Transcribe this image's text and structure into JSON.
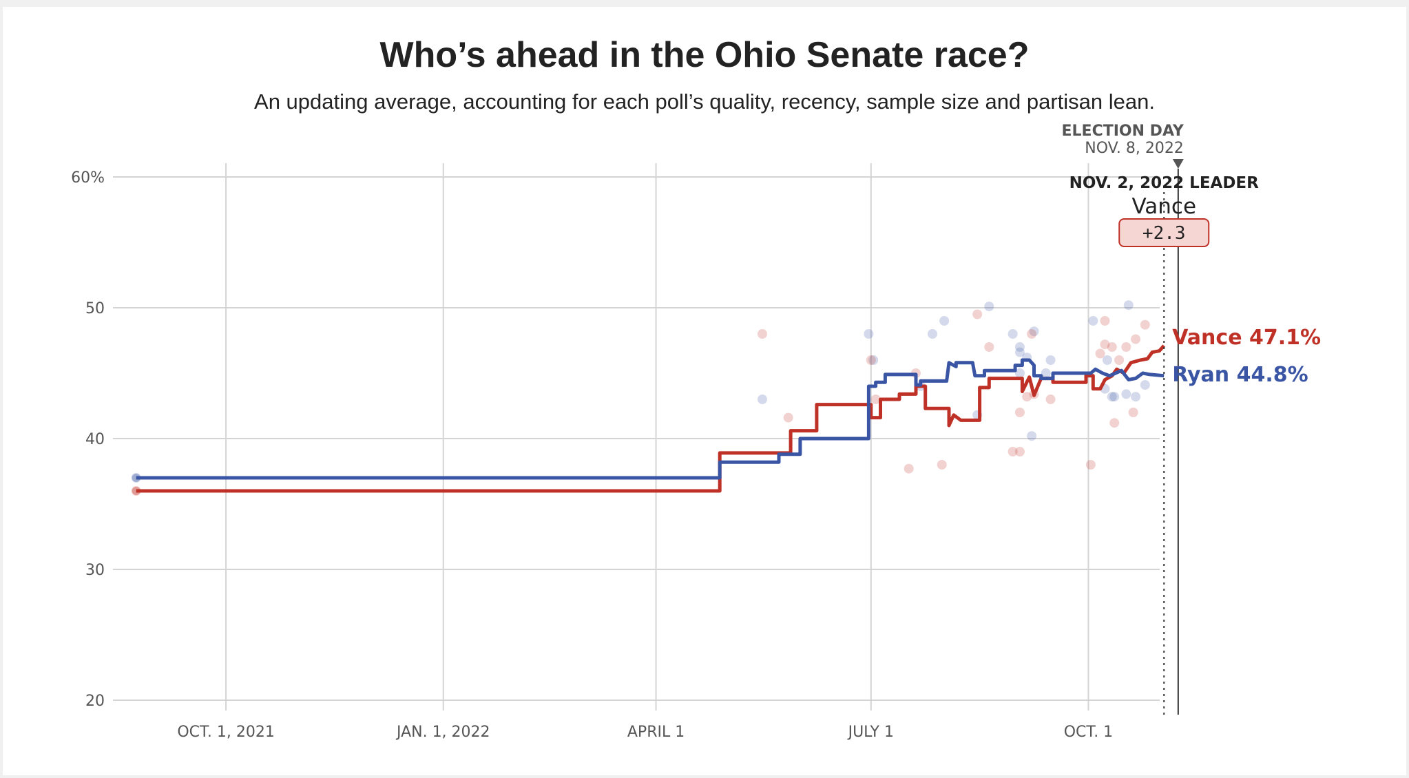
{
  "chart_data": {
    "type": "line",
    "title": "Who’s ahead in the Ohio Senate race?",
    "subtitle": "An updating average, accounting for each poll’s quality, recency, sample size and partisan lean.",
    "ylim": [
      20,
      60
    ],
    "yticks": [
      {
        "value": 60,
        "label": "60%"
      },
      {
        "value": 50,
        "label": "50"
      },
      {
        "value": 40,
        "label": "40"
      },
      {
        "value": 30,
        "label": "30"
      },
      {
        "value": 20,
        "label": "20"
      }
    ],
    "xlim": [
      "2021-08-20",
      "2022-11-20"
    ],
    "xticks": [
      {
        "date": "2021-10-01",
        "label": "OCT. 1, 2021"
      },
      {
        "date": "2022-01-01",
        "label": "JAN. 1, 2022"
      },
      {
        "date": "2022-04-01",
        "label": "APRIL 1"
      },
      {
        "date": "2022-07-01",
        "label": "JULY 1"
      },
      {
        "date": "2022-10-01",
        "label": "OCT. 1"
      }
    ],
    "grid": true,
    "series": [
      {
        "name": "Ryan",
        "color": "#3a55a4",
        "end_label": "Ryan 44.8%",
        "points": [
          [
            "2021-08-24",
            37.0
          ],
          [
            "2022-04-28",
            37.0
          ],
          [
            "2022-04-28",
            38.2
          ],
          [
            "2022-05-23",
            38.2
          ],
          [
            "2022-05-23",
            38.8
          ],
          [
            "2022-06-01",
            38.8
          ],
          [
            "2022-06-01",
            40.0
          ],
          [
            "2022-06-30",
            40.0
          ],
          [
            "2022-06-30",
            44.0
          ],
          [
            "2022-07-03",
            44.0
          ],
          [
            "2022-07-03",
            44.3
          ],
          [
            "2022-07-07",
            44.3
          ],
          [
            "2022-07-07",
            44.9
          ],
          [
            "2022-07-20",
            44.9
          ],
          [
            "2022-07-20",
            44.1
          ],
          [
            "2022-07-22",
            44.1
          ],
          [
            "2022-07-22",
            44.4
          ],
          [
            "2022-08-02",
            44.4
          ],
          [
            "2022-08-03",
            45.8
          ],
          [
            "2022-08-06",
            45.5
          ],
          [
            "2022-08-06",
            45.8
          ],
          [
            "2022-08-13",
            45.8
          ],
          [
            "2022-08-14",
            44.8
          ],
          [
            "2022-08-18",
            44.8
          ],
          [
            "2022-08-18",
            45.2
          ],
          [
            "2022-08-31",
            45.2
          ],
          [
            "2022-08-31",
            45.6
          ],
          [
            "2022-09-03",
            45.6
          ],
          [
            "2022-09-03",
            46.0
          ],
          [
            "2022-09-06",
            46.0
          ],
          [
            "2022-09-08",
            45.6
          ],
          [
            "2022-09-08",
            44.8
          ],
          [
            "2022-09-11",
            44.8
          ],
          [
            "2022-09-11",
            44.6
          ],
          [
            "2022-09-16",
            44.6
          ],
          [
            "2022-09-16",
            45.0
          ],
          [
            "2022-10-02",
            45.0
          ],
          [
            "2022-10-04",
            45.3
          ],
          [
            "2022-10-07",
            45.0
          ],
          [
            "2022-10-10",
            44.8
          ],
          [
            "2022-10-15",
            45.2
          ],
          [
            "2022-10-18",
            44.5
          ],
          [
            "2022-10-21",
            44.6
          ],
          [
            "2022-10-24",
            45.0
          ],
          [
            "2022-10-27",
            44.9
          ],
          [
            "2022-11-02",
            44.8
          ]
        ],
        "polls": [
          [
            "2021-08-24",
            37.0
          ],
          [
            "2022-05-16",
            43.0
          ],
          [
            "2022-06-30",
            48.0
          ],
          [
            "2022-07-02",
            46.0
          ],
          [
            "2022-07-22",
            44.0
          ],
          [
            "2022-07-27",
            48.0
          ],
          [
            "2022-08-01",
            49.0
          ],
          [
            "2022-08-15",
            41.8
          ],
          [
            "2022-08-20",
            50.1
          ],
          [
            "2022-08-30",
            48.0
          ],
          [
            "2022-09-02",
            47.0
          ],
          [
            "2022-09-02",
            45.0
          ],
          [
            "2022-09-02",
            46.6
          ],
          [
            "2022-09-05",
            46.2
          ],
          [
            "2022-09-07",
            40.2
          ],
          [
            "2022-09-08",
            48.2
          ],
          [
            "2022-09-13",
            45.0
          ],
          [
            "2022-09-15",
            46.0
          ],
          [
            "2022-10-03",
            49.0
          ],
          [
            "2022-10-08",
            43.8
          ],
          [
            "2022-10-09",
            46.0
          ],
          [
            "2022-10-11",
            43.2
          ],
          [
            "2022-10-12",
            43.2
          ],
          [
            "2022-10-17",
            43.4
          ],
          [
            "2022-10-18",
            50.2
          ],
          [
            "2022-10-21",
            43.2
          ],
          [
            "2022-10-25",
            44.1
          ]
        ]
      },
      {
        "name": "Vance",
        "color": "#bf3127",
        "end_label": "Vance 47.1%",
        "points": [
          [
            "2021-08-24",
            36.0
          ],
          [
            "2022-04-28",
            36.0
          ],
          [
            "2022-04-28",
            38.9
          ],
          [
            "2022-05-28",
            38.9
          ],
          [
            "2022-05-28",
            40.6
          ],
          [
            "2022-06-08",
            40.6
          ],
          [
            "2022-06-08",
            42.6
          ],
          [
            "2022-07-01",
            42.6
          ],
          [
            "2022-07-01",
            41.6
          ],
          [
            "2022-07-05",
            41.6
          ],
          [
            "2022-07-05",
            43.0
          ],
          [
            "2022-07-13",
            43.0
          ],
          [
            "2022-07-13",
            43.4
          ],
          [
            "2022-07-20",
            43.4
          ],
          [
            "2022-07-20",
            44.0
          ],
          [
            "2022-07-24",
            44.0
          ],
          [
            "2022-07-24",
            42.3
          ],
          [
            "2022-08-03",
            42.3
          ],
          [
            "2022-08-03",
            41.0
          ],
          [
            "2022-08-05",
            41.8
          ],
          [
            "2022-08-08",
            41.4
          ],
          [
            "2022-08-16",
            41.4
          ],
          [
            "2022-08-16",
            43.9
          ],
          [
            "2022-08-20",
            43.9
          ],
          [
            "2022-08-20",
            44.6
          ],
          [
            "2022-09-03",
            44.6
          ],
          [
            "2022-09-03",
            43.6
          ],
          [
            "2022-09-06",
            44.7
          ],
          [
            "2022-09-08",
            43.3
          ],
          [
            "2022-09-11",
            44.6
          ],
          [
            "2022-09-16",
            44.6
          ],
          [
            "2022-09-16",
            44.3
          ],
          [
            "2022-09-30",
            44.3
          ],
          [
            "2022-09-30",
            44.8
          ],
          [
            "2022-10-03",
            44.8
          ],
          [
            "2022-10-03",
            43.8
          ],
          [
            "2022-10-06",
            43.8
          ],
          [
            "2022-10-08",
            44.5
          ],
          [
            "2022-10-11",
            44.8
          ],
          [
            "2022-10-13",
            45.3
          ],
          [
            "2022-10-16",
            45.0
          ],
          [
            "2022-10-19",
            45.8
          ],
          [
            "2022-10-23",
            46.0
          ],
          [
            "2022-10-26",
            46.1
          ],
          [
            "2022-10-28",
            46.6
          ],
          [
            "2022-10-31",
            46.7
          ],
          [
            "2022-11-02",
            47.1
          ]
        ],
        "polls": [
          [
            "2021-08-24",
            36.0
          ],
          [
            "2022-05-16",
            48.0
          ],
          [
            "2022-05-27",
            41.6
          ],
          [
            "2022-07-01",
            46.0
          ],
          [
            "2022-07-03",
            43.0
          ],
          [
            "2022-07-17",
            37.7
          ],
          [
            "2022-07-20",
            45.0
          ],
          [
            "2022-07-31",
            38.0
          ],
          [
            "2022-08-15",
            49.5
          ],
          [
            "2022-08-20",
            47.0
          ],
          [
            "2022-08-30",
            39.0
          ],
          [
            "2022-09-02",
            39.0
          ],
          [
            "2022-09-02",
            42.0
          ],
          [
            "2022-09-05",
            43.2
          ],
          [
            "2022-09-07",
            48.0
          ],
          [
            "2022-09-08",
            43.4
          ],
          [
            "2022-09-15",
            43.0
          ],
          [
            "2022-10-02",
            38.0
          ],
          [
            "2022-10-06",
            46.5
          ],
          [
            "2022-10-08",
            49.0
          ],
          [
            "2022-10-08",
            47.2
          ],
          [
            "2022-10-11",
            47.0
          ],
          [
            "2022-10-12",
            41.2
          ],
          [
            "2022-10-14",
            46.0
          ],
          [
            "2022-10-17",
            47.0
          ],
          [
            "2022-10-20",
            42.0
          ],
          [
            "2022-10-21",
            47.6
          ],
          [
            "2022-10-25",
            48.7
          ]
        ]
      }
    ],
    "annotations": {
      "election_day": {
        "date": "2022-11-08",
        "label": "ELECTION DAY",
        "sublabel": "NOV. 8, 2022"
      },
      "leader": {
        "date": "2022-11-02",
        "label": "NOV. 2, 2022 LEADER",
        "name": "Vance",
        "margin": "+2.3"
      }
    }
  }
}
